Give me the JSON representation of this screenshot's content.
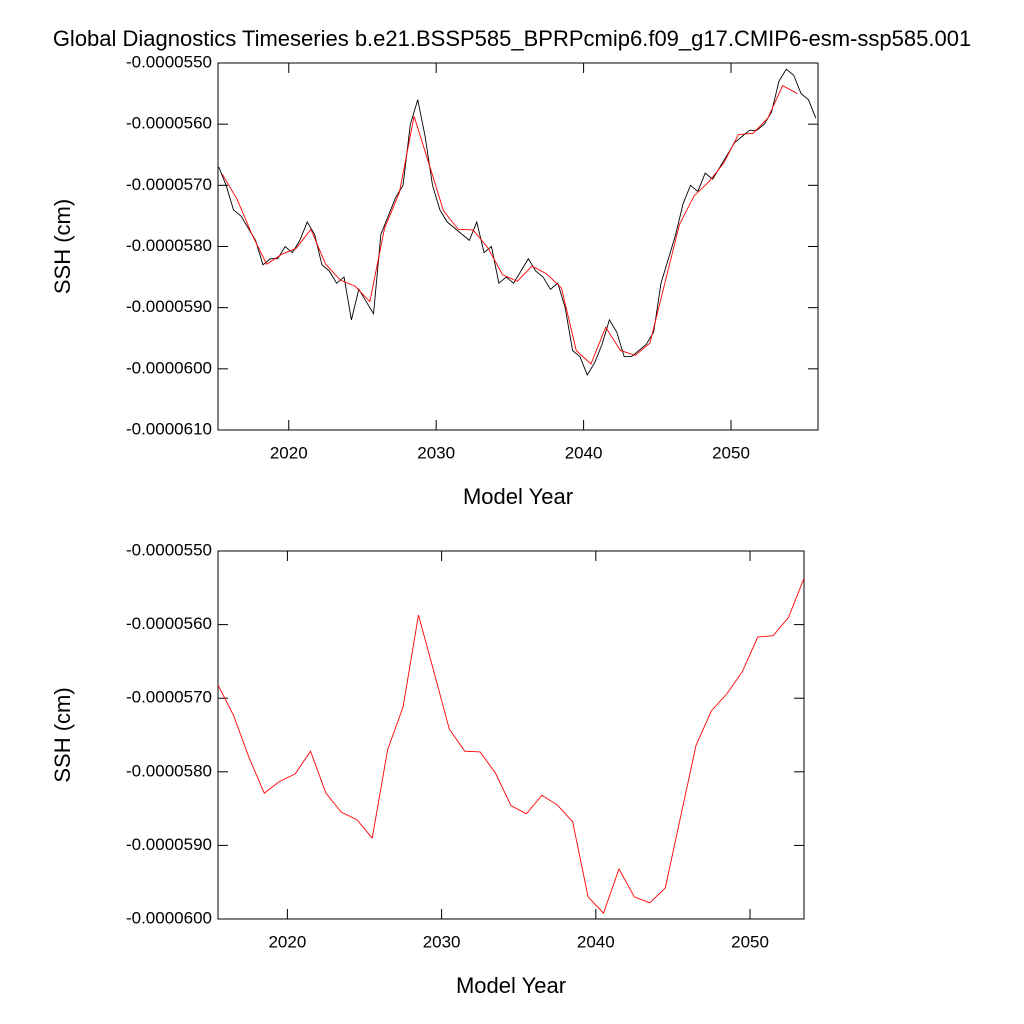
{
  "chart_data": [
    {
      "type": "line",
      "title": "Global Diagnostics Timeseries b.e21.BSSP585_BPRPcmip6.f09_g17.CMIP6-esm-ssp585.001",
      "xlabel": "Model Year",
      "ylabel": "SSH (cm)",
      "xlim": [
        2015.2,
        2055.9
      ],
      "xticks": [
        2020,
        2030,
        2040,
        2050
      ],
      "ylim": [
        -6.1e-05,
        -5.5e-05
      ],
      "yticks": [
        {
          "value": -5.5e-05,
          "label": "-0.0000550"
        },
        {
          "value": -5.6e-05,
          "label": "-0.0000560"
        },
        {
          "value": -5.7e-05,
          "label": "-0.0000570"
        },
        {
          "value": -5.8e-05,
          "label": "-0.0000580"
        },
        {
          "value": -5.9e-05,
          "label": "-0.0000590"
        },
        {
          "value": -6e-05,
          "label": "-0.0000600"
        },
        {
          "value": -6.1e-05,
          "label": "-0.0000610"
        }
      ],
      "series": [
        {
          "color": "#000000",
          "x": [
            2015.25,
            2015.75,
            2016.25,
            2016.75,
            2017.25,
            2017.75,
            2018.25,
            2018.75,
            2019.25,
            2019.75,
            2020.25,
            2020.75,
            2021.25,
            2021.75,
            2022.25,
            2022.75,
            2023.25,
            2023.75,
            2024.25,
            2024.75,
            2025.25,
            2025.75,
            2026.25,
            2026.75,
            2027.25,
            2027.75,
            2028.25,
            2028.75,
            2029.25,
            2029.75,
            2030.25,
            2030.75,
            2031.25,
            2031.75,
            2032.25,
            2032.75,
            2033.25,
            2033.75,
            2034.25,
            2034.75,
            2035.25,
            2035.75,
            2036.25,
            2036.75,
            2037.25,
            2037.75,
            2038.25,
            2038.75,
            2039.25,
            2039.75,
            2040.25,
            2040.75,
            2041.25,
            2041.75,
            2042.25,
            2042.75,
            2043.25,
            2043.75,
            2044.25,
            2044.75,
            2045.25,
            2045.75,
            2046.25,
            2046.75,
            2047.25,
            2047.75,
            2048.25,
            2048.75,
            2049.25,
            2049.75,
            2050.25,
            2050.75,
            2051.25,
            2051.75,
            2052.25,
            2052.75,
            2053.25,
            2053.75,
            2054.25,
            2054.75,
            2055.25,
            2055.75
          ],
          "values": [
            -5.67e-05,
            -5.7e-05,
            -5.74e-05,
            -5.75e-05,
            -5.77e-05,
            -5.79e-05,
            -5.83e-05,
            -5.82e-05,
            -5.82e-05,
            -5.8e-05,
            -5.81e-05,
            -5.79e-05,
            -5.76e-05,
            -5.78e-05,
            -5.83e-05,
            -5.84e-05,
            -5.86e-05,
            -5.85e-05,
            -5.92e-05,
            -5.87e-05,
            -5.89e-05,
            -5.91e-05,
            -5.78e-05,
            -5.75e-05,
            -5.72e-05,
            -5.7e-05,
            -5.6e-05,
            -5.56e-05,
            -5.62e-05,
            -5.7e-05,
            -5.74e-05,
            -5.76e-05,
            -5.77e-05,
            -5.78e-05,
            -5.79e-05,
            -5.76e-05,
            -5.81e-05,
            -5.8e-05,
            -5.86e-05,
            -5.85e-05,
            -5.86e-05,
            -5.84e-05,
            -5.82e-05,
            -5.84e-05,
            -5.85e-05,
            -5.87e-05,
            -5.86e-05,
            -5.9e-05,
            -5.97e-05,
            -5.98e-05,
            -6.01e-05,
            -5.99e-05,
            -5.96e-05,
            -5.92e-05,
            -5.94e-05,
            -5.98e-05,
            -5.98e-05,
            -5.97e-05,
            -5.96e-05,
            -5.94e-05,
            -5.86e-05,
            -5.82e-05,
            -5.78e-05,
            -5.73e-05,
            -5.7e-05,
            -5.71e-05,
            -5.68e-05,
            -5.69e-05,
            -5.67e-05,
            -5.65e-05,
            -5.63e-05,
            -5.62e-05,
            -5.61e-05,
            -5.61e-05,
            -5.6e-05,
            -5.58e-05,
            -5.53e-05,
            -5.51e-05,
            -5.52e-05,
            -5.55e-05,
            -5.56e-05,
            -5.59e-05
          ]
        },
        {
          "color": "#ff0000",
          "x": [
            2015.5,
            2016.5,
            2017.5,
            2018.5,
            2019.5,
            2020.5,
            2021.5,
            2022.5,
            2023.5,
            2024.5,
            2025.5,
            2026.5,
            2027.5,
            2028.5,
            2029.5,
            2030.5,
            2031.5,
            2032.5,
            2033.5,
            2034.5,
            2035.5,
            2036.5,
            2037.5,
            2038.5,
            2039.5,
            2040.5,
            2041.5,
            2042.5,
            2043.5,
            2044.5,
            2045.5,
            2046.5,
            2047.5,
            2048.5,
            2049.5,
            2050.5,
            2051.5,
            2052.5,
            2053.5,
            2054.5
          ],
          "values": [
            -5.682e-05,
            -5.723e-05,
            -5.78e-05,
            -5.829e-05,
            -5.813e-05,
            -5.803e-05,
            -5.772e-05,
            -5.829e-05,
            -5.855e-05,
            -5.865e-05,
            -5.89e-05,
            -5.77e-05,
            -5.712e-05,
            -5.587e-05,
            -5.664e-05,
            -5.742e-05,
            -5.772e-05,
            -5.773e-05,
            -5.802e-05,
            -5.846e-05,
            -5.857e-05,
            -5.832e-05,
            -5.845e-05,
            -5.868e-05,
            -5.97e-05,
            -5.992e-05,
            -5.932e-05,
            -5.97e-05,
            -5.978e-05,
            -5.958e-05,
            -5.861e-05,
            -5.764e-05,
            -5.717e-05,
            -5.694e-05,
            -5.664e-05,
            -5.617e-05,
            -5.615e-05,
            -5.59e-05,
            -5.537e-05,
            -5.55e-05
          ]
        }
      ]
    },
    {
      "type": "line",
      "xlabel": "Model Year",
      "ylabel": "SSH (cm)",
      "xlim": [
        2015.5,
        2053.5
      ],
      "xticks": [
        2020,
        2030,
        2040,
        2050
      ],
      "ylim": [
        -6e-05,
        -5.5e-05
      ],
      "yticks": [
        {
          "value": -5.5e-05,
          "label": "-0.0000550"
        },
        {
          "value": -5.6e-05,
          "label": "-0.0000560"
        },
        {
          "value": -5.7e-05,
          "label": "-0.0000570"
        },
        {
          "value": -5.8e-05,
          "label": "-0.0000580"
        },
        {
          "value": -5.9e-05,
          "label": "-0.0000590"
        },
        {
          "value": -6e-05,
          "label": "-0.0000600"
        }
      ],
      "series": [
        {
          "color": "#ff0000",
          "x": [
            2015.5,
            2016.5,
            2017.5,
            2018.5,
            2019.5,
            2020.5,
            2021.5,
            2022.5,
            2023.5,
            2024.5,
            2025.5,
            2026.5,
            2027.5,
            2028.5,
            2029.5,
            2030.5,
            2031.5,
            2032.5,
            2033.5,
            2034.5,
            2035.5,
            2036.5,
            2037.5,
            2038.5,
            2039.5,
            2040.5,
            2041.5,
            2042.5,
            2043.5,
            2044.5,
            2045.5,
            2046.5,
            2047.5,
            2048.5,
            2049.5,
            2050.5,
            2051.5,
            2052.5,
            2053.5
          ],
          "values": [
            -5.682e-05,
            -5.723e-05,
            -5.78e-05,
            -5.829e-05,
            -5.813e-05,
            -5.803e-05,
            -5.772e-05,
            -5.829e-05,
            -5.855e-05,
            -5.865e-05,
            -5.89e-05,
            -5.77e-05,
            -5.712e-05,
            -5.587e-05,
            -5.664e-05,
            -5.742e-05,
            -5.772e-05,
            -5.773e-05,
            -5.802e-05,
            -5.846e-05,
            -5.857e-05,
            -5.832e-05,
            -5.845e-05,
            -5.868e-05,
            -5.97e-05,
            -5.992e-05,
            -5.932e-05,
            -5.97e-05,
            -5.978e-05,
            -5.958e-05,
            -5.861e-05,
            -5.764e-05,
            -5.717e-05,
            -5.694e-05,
            -5.664e-05,
            -5.617e-05,
            -5.615e-05,
            -5.59e-05,
            -5.537e-05
          ]
        }
      ]
    }
  ]
}
